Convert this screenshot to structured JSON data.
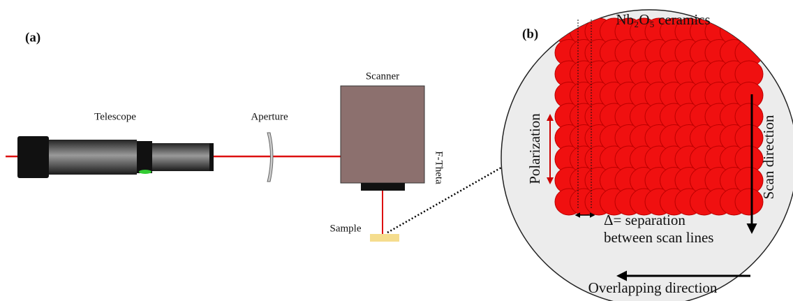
{
  "panel_a": {
    "label": "(a)",
    "telescope": "Telescope",
    "aperture": "Aperture",
    "scanner": "Scanner",
    "f_theta": "F-Theta",
    "sample": "Sample"
  },
  "panel_b": {
    "label": "(b)",
    "material": "Nb₂O₅ ceramics",
    "polarization": "Polarization",
    "scan_direction": "Scan direction",
    "separation": [
      "Δ= separation",
      "between scan lines"
    ],
    "overlapping_direction": "Overlapping direction"
  }
}
